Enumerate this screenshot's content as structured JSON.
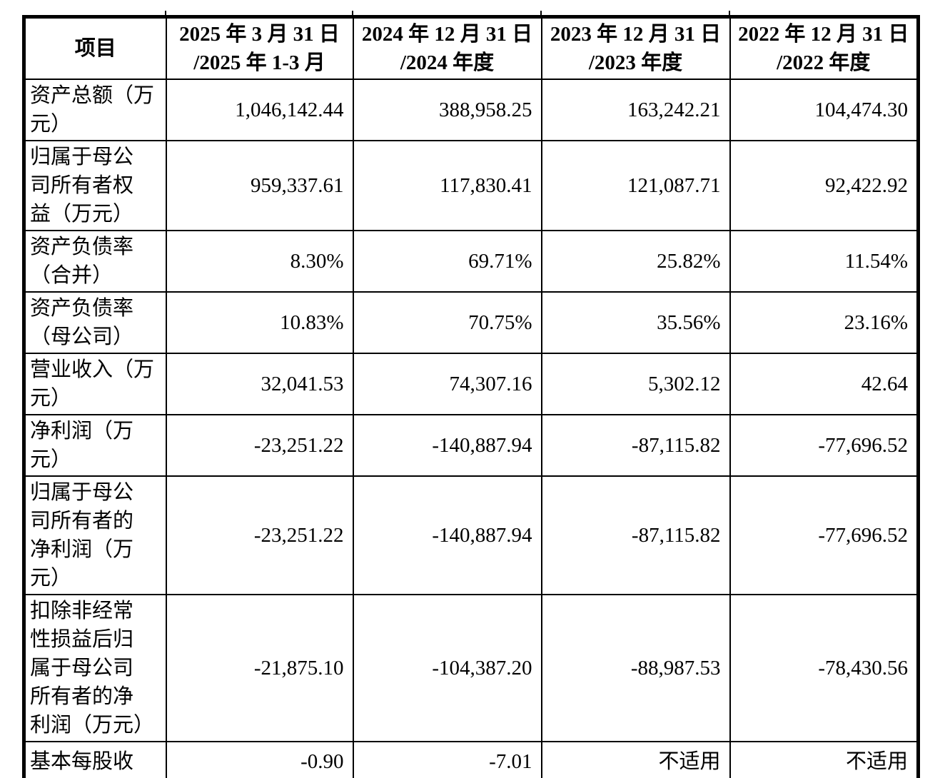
{
  "page": {
    "background_color": "#ffffff",
    "text_color": "#000000",
    "border_color": "#000000"
  },
  "table": {
    "header": {
      "item_col": "项目",
      "period_cols": [
        "2025 年 3 月 31 日\n/2025 年 1-3 月",
        "2024 年 12 月 31 日\n/2024 年度",
        "2023 年 12 月 31 日\n/2023 年度",
        "2022 年 12 月 31 日\n/2022 年度"
      ]
    },
    "rows": [
      {
        "label": "资产总额（万\n元）",
        "values": [
          "1,046,142.44",
          "388,958.25",
          "163,242.21",
          "104,474.30"
        ]
      },
      {
        "label": "归属于母公\n司所有者权\n益（万元）",
        "values": [
          "959,337.61",
          "117,830.41",
          "121,087.71",
          "92,422.92"
        ]
      },
      {
        "label": "资产负债率\n（合并）",
        "values": [
          "8.30%",
          "69.71%",
          "25.82%",
          "11.54%"
        ]
      },
      {
        "label": "资产负债率\n（母公司）",
        "values": [
          "10.83%",
          "70.75%",
          "35.56%",
          "23.16%"
        ]
      },
      {
        "label": "营业收入（万\n元）",
        "values": [
          "32,041.53",
          "74,307.16",
          "5,302.12",
          "42.64"
        ]
      },
      {
        "label": "净利润（万\n元）",
        "values": [
          "-23,251.22",
          "-140,887.94",
          "-87,115.82",
          "-77,696.52"
        ]
      },
      {
        "label": "归属于母公\n司所有者的\n净利润（万\n元）",
        "values": [
          "-23,251.22",
          "-140,887.94",
          "-87,115.82",
          "-77,696.52"
        ]
      },
      {
        "label": "扣除非经常\n性损益后归\n属于母公司\n所有者的净\n利润（万元）",
        "values": [
          "-21,875.10",
          "-104,387.20",
          "-88,987.53",
          "-78,430.56"
        ]
      },
      {
        "label": "基本每股收",
        "values": [
          "-0.90",
          "-7.01",
          "不适用",
          "不适用"
        ]
      }
    ]
  }
}
